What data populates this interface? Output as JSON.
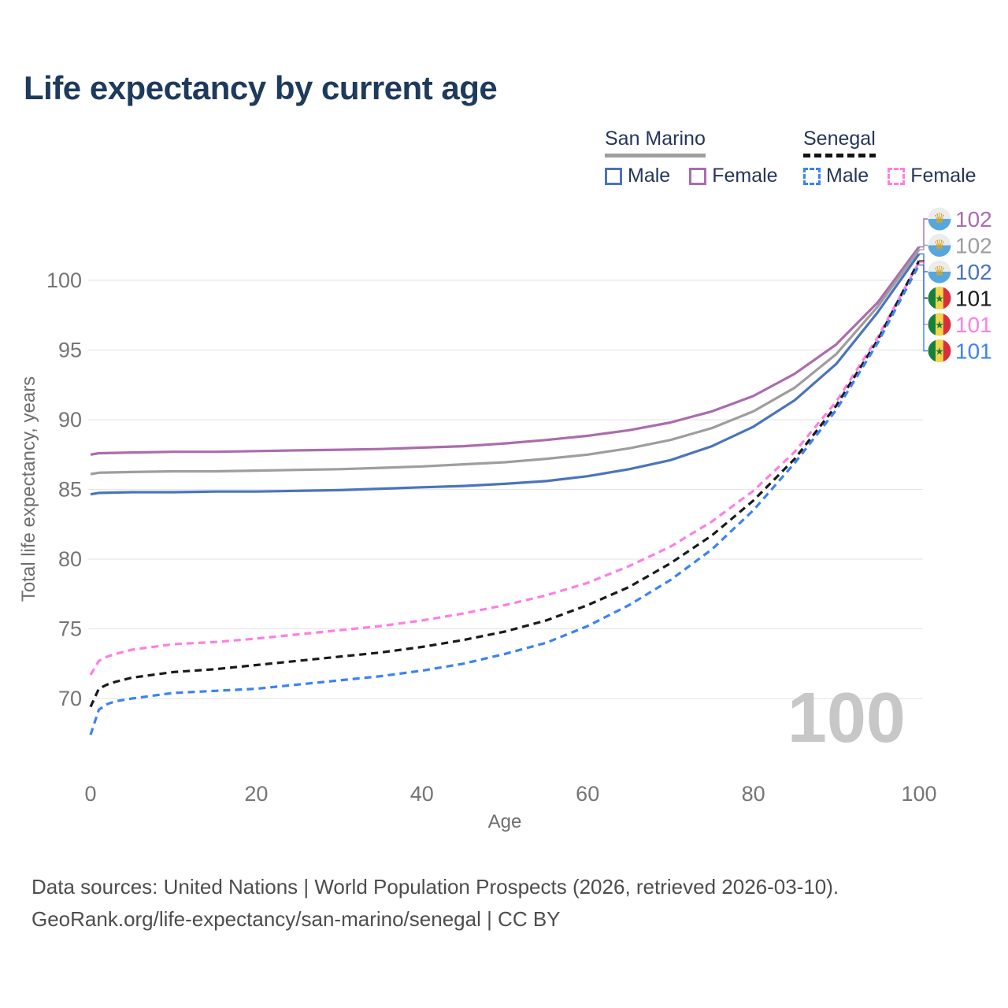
{
  "title": "Life expectancy by current age",
  "legend": {
    "san_marino": {
      "label": "San Marino",
      "male": "Male",
      "female": "Female"
    },
    "senegal": {
      "label": "Senegal",
      "male": "Male",
      "female": "Female"
    }
  },
  "watermark": "100",
  "footer": {
    "line1": "Data sources: United Nations | World Population Prospects (2026, retrieved 2026-03-10).",
    "line2": "GeoRank.org/life-expectancy/san-marino/senegal | CC BY"
  },
  "colors": {
    "title_navy": "#1e3a5c",
    "san_marino_male": "#4a74bd",
    "san_marino_female": "#ab6cad",
    "san_marino_both": "#9e9e9e",
    "senegal_male": "#3b82f6",
    "senegal_female": "#ff7ee3",
    "senegal_both": "#1a1a1a",
    "gridline": "#e7e7e7",
    "tick_text": "#757575"
  },
  "flags": {
    "san_marino": {
      "top": "#ececec",
      "bottom": "#55a7de",
      "emblem": "#d9a520"
    },
    "senegal": {
      "green": "#17813b",
      "yellow": "#f5d44a",
      "red": "#d7303c",
      "star": "#17813b"
    }
  },
  "chart_data": {
    "type": "line",
    "title": "Life expectancy by current age",
    "xlabel": "Age",
    "ylabel": "Total life expectancy, years",
    "xticks": [
      0,
      20,
      40,
      60,
      80,
      100
    ],
    "yticks": [
      70,
      75,
      80,
      85,
      90,
      95,
      100
    ],
    "xlim": [
      0,
      100
    ],
    "ylim": [
      66,
      103
    ],
    "grid": "horizontal",
    "legend_position": "top-right",
    "series": [
      {
        "id": "san-marino-female",
        "name": "San Marino Female",
        "color": "#ab6cad",
        "dashed": false,
        "points": [
          [
            0,
            87.5
          ],
          [
            1,
            87.6
          ],
          [
            5,
            87.65
          ],
          [
            10,
            87.7
          ],
          [
            15,
            87.7
          ],
          [
            20,
            87.75
          ],
          [
            25,
            87.8
          ],
          [
            30,
            87.85
          ],
          [
            35,
            87.9
          ],
          [
            40,
            88.0
          ],
          [
            45,
            88.1
          ],
          [
            50,
            88.3
          ],
          [
            55,
            88.55
          ],
          [
            60,
            88.85
          ],
          [
            65,
            89.25
          ],
          [
            70,
            89.8
          ],
          [
            75,
            90.6
          ],
          [
            80,
            91.7
          ],
          [
            85,
            93.3
          ],
          [
            90,
            95.4
          ],
          [
            95,
            98.4
          ],
          [
            100,
            102.4
          ]
        ]
      },
      {
        "id": "san-marino-both",
        "name": "San Marino Both sexes",
        "color": "#9e9e9e",
        "dashed": false,
        "points": [
          [
            0,
            86.1
          ],
          [
            1,
            86.2
          ],
          [
            5,
            86.25
          ],
          [
            10,
            86.3
          ],
          [
            15,
            86.3
          ],
          [
            20,
            86.35
          ],
          [
            25,
            86.4
          ],
          [
            30,
            86.45
          ],
          [
            35,
            86.55
          ],
          [
            40,
            86.65
          ],
          [
            45,
            86.8
          ],
          [
            50,
            86.95
          ],
          [
            55,
            87.2
          ],
          [
            60,
            87.5
          ],
          [
            65,
            87.95
          ],
          [
            70,
            88.55
          ],
          [
            75,
            89.4
          ],
          [
            80,
            90.6
          ],
          [
            85,
            92.3
          ],
          [
            90,
            94.7
          ],
          [
            95,
            98.1
          ],
          [
            100,
            102.2
          ]
        ]
      },
      {
        "id": "san-marino-male",
        "name": "San Marino Male",
        "color": "#4a74bd",
        "dashed": false,
        "points": [
          [
            0,
            84.65
          ],
          [
            1,
            84.75
          ],
          [
            5,
            84.8
          ],
          [
            10,
            84.8
          ],
          [
            15,
            84.85
          ],
          [
            20,
            84.85
          ],
          [
            25,
            84.9
          ],
          [
            30,
            84.95
          ],
          [
            35,
            85.05
          ],
          [
            40,
            85.15
          ],
          [
            45,
            85.25
          ],
          [
            50,
            85.4
          ],
          [
            55,
            85.6
          ],
          [
            60,
            85.95
          ],
          [
            65,
            86.45
          ],
          [
            70,
            87.1
          ],
          [
            75,
            88.1
          ],
          [
            80,
            89.5
          ],
          [
            85,
            91.4
          ],
          [
            90,
            94.0
          ],
          [
            95,
            97.7
          ],
          [
            100,
            101.9
          ]
        ]
      },
      {
        "id": "senegal-female",
        "name": "Senegal Female",
        "color": "#ff7ee3",
        "dashed": true,
        "points": [
          [
            0,
            71.7
          ],
          [
            1,
            72.7
          ],
          [
            2,
            73.0
          ],
          [
            3,
            73.2
          ],
          [
            5,
            73.5
          ],
          [
            10,
            73.9
          ],
          [
            15,
            74.05
          ],
          [
            20,
            74.3
          ],
          [
            25,
            74.6
          ],
          [
            30,
            74.9
          ],
          [
            35,
            75.2
          ],
          [
            40,
            75.6
          ],
          [
            45,
            76.1
          ],
          [
            50,
            76.7
          ],
          [
            55,
            77.4
          ],
          [
            60,
            78.3
          ],
          [
            65,
            79.5
          ],
          [
            70,
            80.9
          ],
          [
            75,
            82.7
          ],
          [
            80,
            84.9
          ],
          [
            85,
            87.7
          ],
          [
            90,
            91.3
          ],
          [
            95,
            95.9
          ],
          [
            100,
            101.3
          ]
        ]
      },
      {
        "id": "senegal-both",
        "name": "Senegal Both sexes",
        "color": "#1a1a1a",
        "dashed": true,
        "points": [
          [
            0,
            69.4
          ],
          [
            1,
            70.7
          ],
          [
            2,
            71.0
          ],
          [
            3,
            71.2
          ],
          [
            5,
            71.5
          ],
          [
            10,
            71.9
          ],
          [
            15,
            72.1
          ],
          [
            20,
            72.4
          ],
          [
            25,
            72.7
          ],
          [
            30,
            73.0
          ],
          [
            35,
            73.3
          ],
          [
            40,
            73.7
          ],
          [
            45,
            74.2
          ],
          [
            50,
            74.8
          ],
          [
            55,
            75.6
          ],
          [
            60,
            76.7
          ],
          [
            65,
            78.0
          ],
          [
            70,
            79.7
          ],
          [
            75,
            81.7
          ],
          [
            80,
            84.2
          ],
          [
            85,
            87.2
          ],
          [
            90,
            91.0
          ],
          [
            95,
            95.7
          ],
          [
            100,
            101.4
          ]
        ]
      },
      {
        "id": "senegal-male",
        "name": "Senegal Male",
        "color": "#3b82f6",
        "dashed": true,
        "points": [
          [
            0,
            67.4
          ],
          [
            1,
            69.2
          ],
          [
            2,
            69.6
          ],
          [
            3,
            69.8
          ],
          [
            5,
            70.0
          ],
          [
            10,
            70.4
          ],
          [
            15,
            70.55
          ],
          [
            20,
            70.7
          ],
          [
            25,
            71.0
          ],
          [
            30,
            71.3
          ],
          [
            35,
            71.6
          ],
          [
            40,
            72.0
          ],
          [
            45,
            72.5
          ],
          [
            50,
            73.2
          ],
          [
            55,
            74.0
          ],
          [
            60,
            75.2
          ],
          [
            65,
            76.7
          ],
          [
            70,
            78.5
          ],
          [
            75,
            80.7
          ],
          [
            80,
            83.5
          ],
          [
            85,
            86.9
          ],
          [
            90,
            90.7
          ],
          [
            95,
            95.5
          ],
          [
            100,
            101.1
          ]
        ]
      }
    ],
    "end_labels": [
      {
        "value": "102",
        "color": "#ab6cad",
        "flag": "san_marino",
        "line_end": 102.4
      },
      {
        "value": "102",
        "color": "#9e9e9e",
        "flag": "san_marino",
        "line_end": 102.2
      },
      {
        "value": "102",
        "color": "#4a74bd",
        "flag": "san_marino",
        "line_end": 101.9
      },
      {
        "value": "101",
        "color": "#1a1a1a",
        "flag": "senegal",
        "line_end": 101.4
      },
      {
        "value": "101",
        "color": "#ff7ee3",
        "flag": "senegal",
        "line_end": 101.3
      },
      {
        "value": "101",
        "color": "#3b82f6",
        "flag": "senegal",
        "line_end": 101.1
      }
    ]
  }
}
